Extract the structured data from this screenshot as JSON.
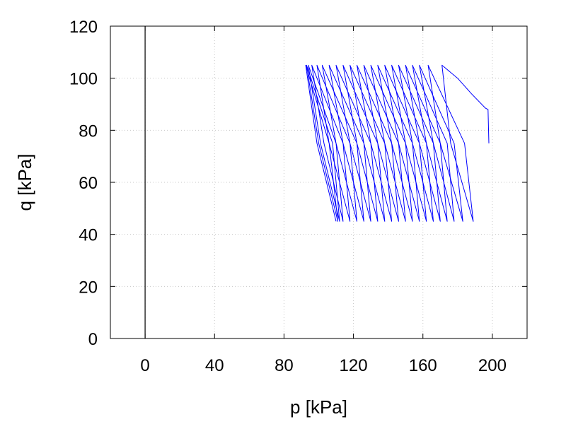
{
  "chart_data": {
    "type": "line",
    "title": "",
    "xlabel": "p [kPa]",
    "ylabel": "q [kPa]",
    "xlim": [
      -20,
      220
    ],
    "ylim": [
      0,
      120
    ],
    "x_ticks": [
      0,
      40,
      80,
      120,
      160,
      200
    ],
    "y_ticks": [
      0,
      20,
      40,
      60,
      80,
      100,
      120
    ],
    "x_tick_labels": [
      "0",
      "40",
      "80",
      "120",
      "160",
      "200"
    ],
    "y_tick_labels": [
      "0",
      "20",
      "40",
      "60",
      "80",
      "100",
      "120"
    ],
    "grid": true,
    "legend": "none",
    "vertical_reference_line_x": 0,
    "series_color": "#0000ff",
    "series": [
      {
        "points": [
          [
            198,
            75
          ],
          [
            197.5,
            88
          ],
          [
            196,
            88.5
          ],
          [
            188,
            94
          ],
          [
            180,
            100
          ],
          [
            171,
            105
          ],
          [
            176,
            75
          ],
          [
            189,
            45
          ],
          [
            184,
            75
          ],
          [
            163,
            105
          ],
          [
            170,
            75
          ],
          [
            183,
            45
          ],
          [
            178,
            75
          ],
          [
            158,
            105
          ],
          [
            166,
            75
          ],
          [
            178,
            45
          ],
          [
            174,
            75
          ],
          [
            154,
            105
          ],
          [
            162,
            75
          ],
          [
            174,
            45
          ],
          [
            170,
            75
          ],
          [
            150,
            105
          ],
          [
            158,
            75
          ],
          [
            170,
            45
          ],
          [
            166,
            75
          ],
          [
            146,
            105
          ],
          [
            154,
            75
          ],
          [
            166,
            45
          ],
          [
            162,
            75
          ],
          [
            142,
            105
          ],
          [
            150,
            75
          ],
          [
            162,
            45
          ],
          [
            158,
            75
          ],
          [
            138,
            105
          ],
          [
            146,
            75
          ],
          [
            158,
            45
          ],
          [
            154,
            75
          ],
          [
            134,
            105
          ],
          [
            142,
            75
          ],
          [
            154,
            45
          ],
          [
            150,
            75
          ],
          [
            130,
            105
          ],
          [
            138,
            75
          ],
          [
            150,
            45
          ],
          [
            146,
            75
          ],
          [
            126,
            105
          ],
          [
            134,
            75
          ],
          [
            146,
            45
          ],
          [
            142,
            75
          ],
          [
            122,
            105
          ],
          [
            130,
            75
          ],
          [
            142,
            45
          ],
          [
            138,
            75
          ],
          [
            118,
            105
          ],
          [
            126,
            75
          ],
          [
            138,
            45
          ],
          [
            134,
            75
          ],
          [
            114,
            105
          ],
          [
            122,
            75
          ],
          [
            134,
            45
          ],
          [
            130,
            75
          ],
          [
            110,
            105
          ],
          [
            118,
            75
          ],
          [
            130,
            45
          ],
          [
            126,
            75
          ],
          [
            106,
            105
          ],
          [
            114,
            75
          ],
          [
            126,
            45
          ],
          [
            122,
            75
          ],
          [
            102,
            105
          ],
          [
            110,
            75
          ],
          [
            122,
            45
          ],
          [
            118,
            75
          ],
          [
            99,
            105
          ],
          [
            106,
            75
          ],
          [
            118,
            45
          ],
          [
            114,
            75
          ],
          [
            96,
            105
          ],
          [
            103,
            75
          ],
          [
            114,
            45
          ],
          [
            110,
            75
          ],
          [
            94,
            105
          ],
          [
            101,
            75
          ],
          [
            112,
            45
          ],
          [
            108,
            75
          ],
          [
            93,
            105
          ],
          [
            100,
            75
          ],
          [
            111,
            45
          ],
          [
            106,
            75
          ],
          [
            92.5,
            105
          ],
          [
            99,
            75
          ],
          [
            110,
            45
          ]
        ]
      }
    ]
  }
}
